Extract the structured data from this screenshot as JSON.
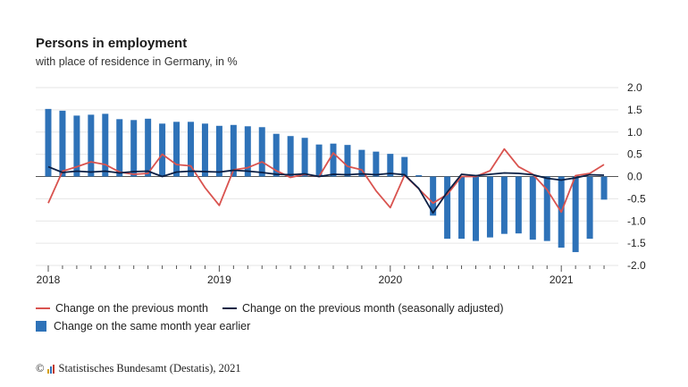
{
  "header": {
    "title": "Persons in employment",
    "subtitle": "with place of residence in Germany, in %"
  },
  "legend": {
    "prev_month": "Change on the previous month",
    "prev_month_sa": "Change on the previous month (seasonally adjusted)",
    "year_earlier": "Change on the same month year earlier"
  },
  "footer": {
    "copyright": "©",
    "source": "Statistisches Bundesamt (Destatis), 2021"
  },
  "colors": {
    "bars": "#2e72b8",
    "prev_month": "#d9534f",
    "prev_month_sa": "#0b1f44",
    "grid": "#e6e6e6",
    "zero": "#555555"
  },
  "chart_data": {
    "type": "bar",
    "x_start": "2018-01",
    "x_end": "2021-04",
    "x_tick_labels": [
      "2018",
      "2019",
      "2020",
      "2021"
    ],
    "ylim": [
      -2.0,
      2.0
    ],
    "y_ticks": [
      "2.0",
      "1.5",
      "1.0",
      "0.5",
      "0.0",
      "-0.5",
      "-1.0",
      "-1.5",
      "-2.0"
    ],
    "grid": true,
    "series": [
      {
        "name": "Change on the same month year earlier",
        "type": "bar",
        "values": [
          1.52,
          1.48,
          1.37,
          1.39,
          1.41,
          1.29,
          1.27,
          1.3,
          1.19,
          1.23,
          1.23,
          1.19,
          1.14,
          1.16,
          1.13,
          1.11,
          0.96,
          0.91,
          0.87,
          0.72,
          0.74,
          0.71,
          0.6,
          0.56,
          0.51,
          0.44,
          0.03,
          -0.88,
          -1.4,
          -1.4,
          -1.45,
          -1.37,
          -1.29,
          -1.28,
          -1.42,
          -1.45,
          -1.6,
          -1.7,
          -1.4,
          -0.52
        ]
      },
      {
        "name": "Change on the previous month",
        "type": "line",
        "values": [
          -0.6,
          0.12,
          0.22,
          0.33,
          0.27,
          0.1,
          0.05,
          0.07,
          0.5,
          0.27,
          0.24,
          -0.25,
          -0.65,
          0.15,
          0.2,
          0.33,
          0.13,
          -0.02,
          0.05,
          0.0,
          0.53,
          0.23,
          0.15,
          -0.32,
          -0.7,
          0.03,
          -0.28,
          -0.6,
          -0.4,
          0.0,
          0.0,
          0.13,
          0.62,
          0.22,
          0.05,
          -0.3,
          -0.8,
          0.02,
          0.07,
          0.27
        ]
      },
      {
        "name": "Change on the previous month (seasonally adjusted)",
        "type": "line",
        "values": [
          0.22,
          0.09,
          0.12,
          0.1,
          0.12,
          0.08,
          0.11,
          0.12,
          0.0,
          0.1,
          0.12,
          0.11,
          0.1,
          0.14,
          0.12,
          0.09,
          0.05,
          0.04,
          0.06,
          0.0,
          0.05,
          0.04,
          0.06,
          0.04,
          0.07,
          0.04,
          -0.27,
          -0.82,
          -0.35,
          0.05,
          0.02,
          0.05,
          0.08,
          0.07,
          0.04,
          -0.04,
          -0.08,
          -0.03,
          0.04,
          0.03
        ]
      }
    ]
  }
}
